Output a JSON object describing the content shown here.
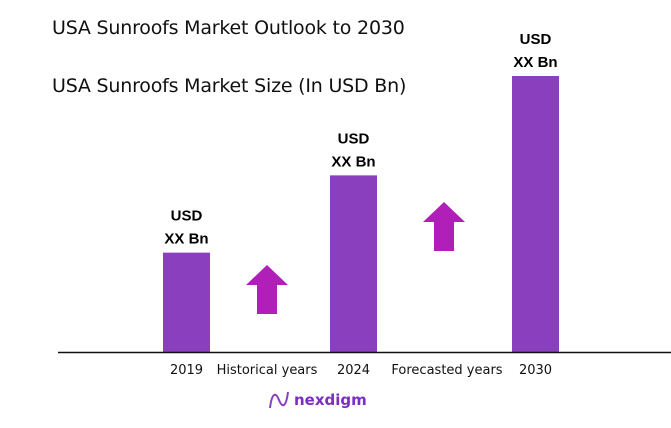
{
  "chart_data": {
    "type": "bar",
    "title": "USA Sunroofs Market Outlook to 2030",
    "subtitle": "USA Sunroofs Market Size (In USD Bn)",
    "categories": [
      "2019",
      "2024",
      "2030"
    ],
    "values": [
      36,
      64,
      100
    ],
    "data_labels": [
      [
        "USD",
        "XX Bn"
      ],
      [
        "USD",
        "XX Bn"
      ],
      [
        "USD",
        "XX Bn"
      ]
    ],
    "annotations": [
      "Historical years",
      "Forecasted years"
    ],
    "bar_color": "#8a3fbf",
    "arrow_color": "#b020b8",
    "grid": false,
    "legend": "none"
  },
  "logo": {
    "text": "nexdigm"
  }
}
